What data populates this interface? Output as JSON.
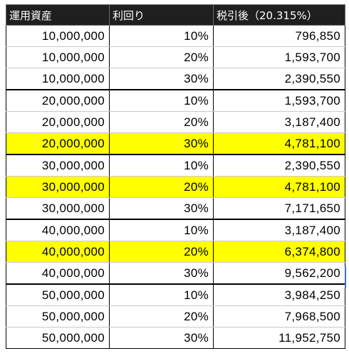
{
  "table": {
    "headers": [
      "運用資産",
      "利回り",
      "税引後（20.315%）"
    ],
    "highlight_color": "#ffff00",
    "rows": [
      {
        "asset": "10,000,000",
        "rate": "10%",
        "after_tax": "796,850",
        "highlight": false,
        "group_end": false
      },
      {
        "asset": "10,000,000",
        "rate": "20%",
        "after_tax": "1,593,700",
        "highlight": false,
        "group_end": false
      },
      {
        "asset": "10,000,000",
        "rate": "30%",
        "after_tax": "2,390,550",
        "highlight": false,
        "group_end": true
      },
      {
        "asset": "20,000,000",
        "rate": "10%",
        "after_tax": "1,593,700",
        "highlight": false,
        "group_end": false
      },
      {
        "asset": "20,000,000",
        "rate": "20%",
        "after_tax": "3,187,400",
        "highlight": false,
        "group_end": false
      },
      {
        "asset": "20,000,000",
        "rate": "30%",
        "after_tax": "4,781,100",
        "highlight": true,
        "group_end": true
      },
      {
        "asset": "30,000,000",
        "rate": "10%",
        "after_tax": "2,390,550",
        "highlight": false,
        "group_end": false
      },
      {
        "asset": "30,000,000",
        "rate": "20%",
        "after_tax": "4,781,100",
        "highlight": true,
        "group_end": false
      },
      {
        "asset": "30,000,000",
        "rate": "30%",
        "after_tax": "7,171,650",
        "highlight": false,
        "group_end": true
      },
      {
        "asset": "40,000,000",
        "rate": "10%",
        "after_tax": "3,187,400",
        "highlight": false,
        "group_end": false
      },
      {
        "asset": "40,000,000",
        "rate": "20%",
        "after_tax": "6,374,800",
        "highlight": true,
        "group_end": false
      },
      {
        "asset": "40,000,000",
        "rate": "30%",
        "after_tax": "9,562,200",
        "highlight": false,
        "group_end": true
      },
      {
        "asset": "50,000,000",
        "rate": "10%",
        "after_tax": "3,984,250",
        "highlight": false,
        "group_end": false
      },
      {
        "asset": "50,000,000",
        "rate": "20%",
        "after_tax": "7,968,500",
        "highlight": false,
        "group_end": false
      },
      {
        "asset": "50,000,000",
        "rate": "30%",
        "after_tax": "11,952,750",
        "highlight": false,
        "group_end": false
      }
    ]
  }
}
